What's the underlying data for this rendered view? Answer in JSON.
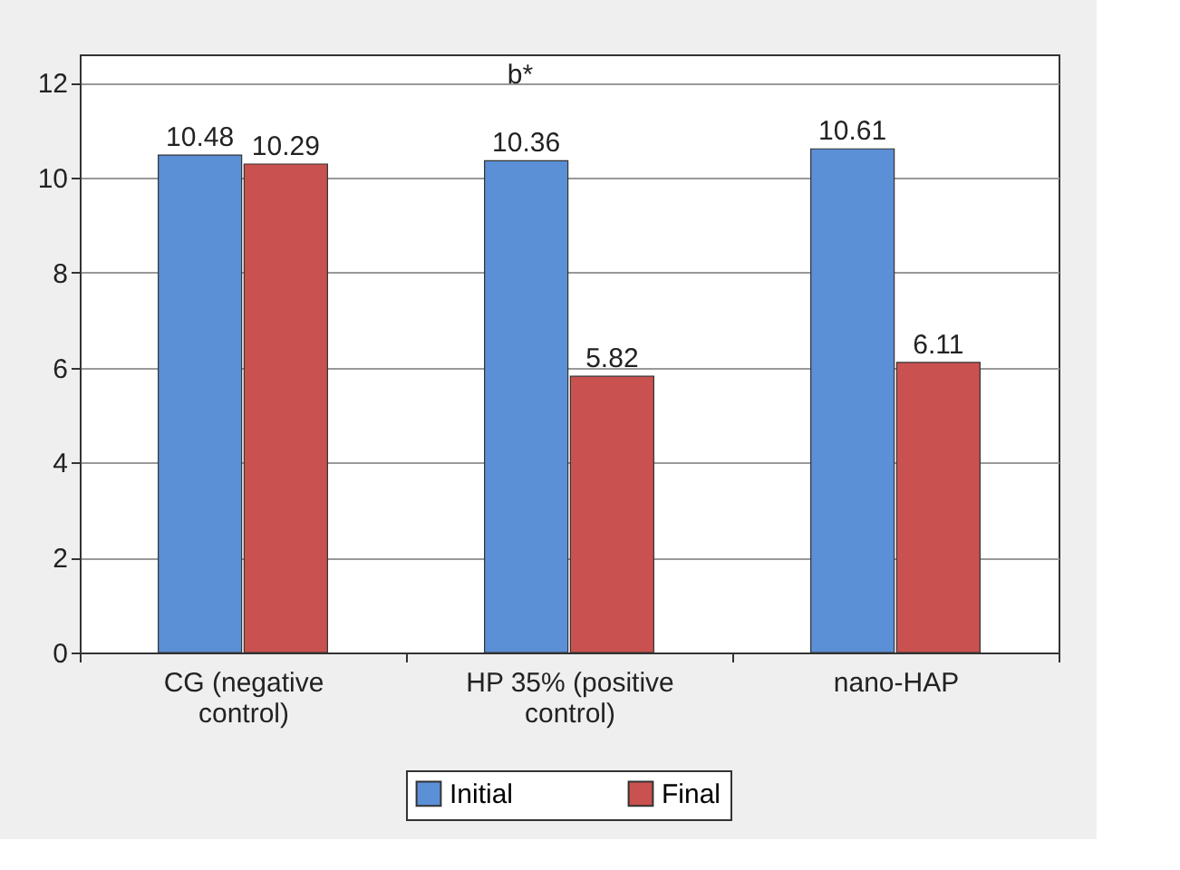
{
  "chart_data": {
    "type": "bar",
    "categories": [
      "CG (negative control)",
      "HP 35% (positive control)",
      "nano-HAP"
    ],
    "series": [
      {
        "name": "Initial",
        "color": "#5b8fd6",
        "values": [
          10.48,
          10.36,
          10.61
        ]
      },
      {
        "name": "Final",
        "color": "#c9514f",
        "values": [
          10.29,
          5.82,
          6.11
        ]
      }
    ],
    "ylim": [
      0,
      12.6
    ],
    "yticks": [
      0,
      2,
      4,
      6,
      8,
      10,
      12
    ],
    "grid": "y",
    "legend": "bottom",
    "data_labels": true,
    "annotations": [
      "b*"
    ]
  }
}
